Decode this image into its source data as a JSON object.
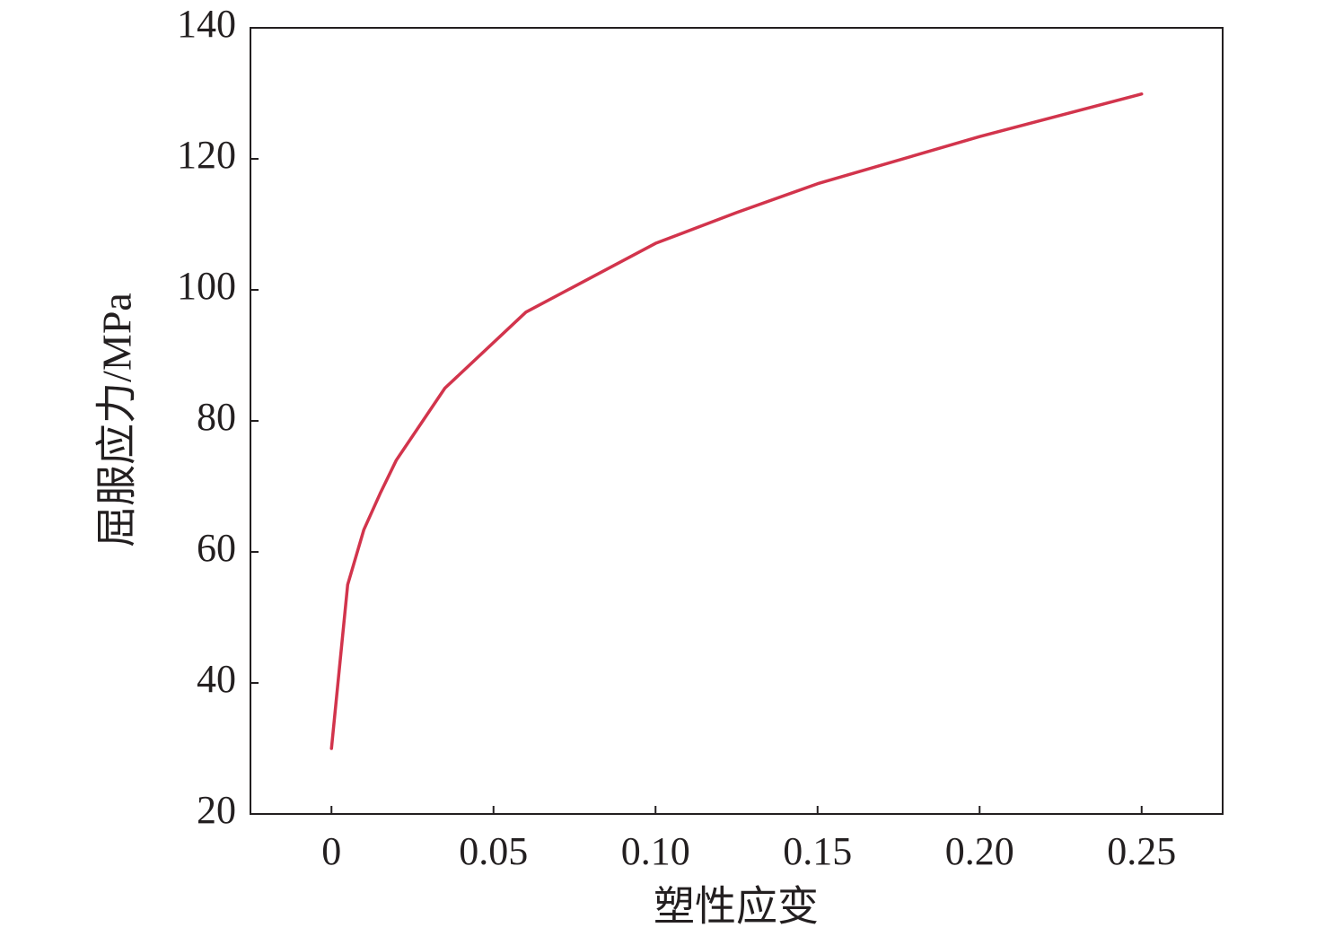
{
  "chart_data": {
    "type": "line",
    "xlabel": "塑性应变",
    "ylabel": "屈服应力/MPa",
    "x": [
      0,
      0.005,
      0.01,
      0.015,
      0.02,
      0.035,
      0.06,
      0.1,
      0.125,
      0.15,
      0.2,
      0.25
    ],
    "values": [
      30,
      55,
      63.4,
      68.9,
      74,
      85,
      96.6,
      107.1,
      111.8,
      116.2,
      123.4,
      129.9
    ],
    "color": "#d2344c",
    "xlim": [
      -0.025,
      0.275
    ],
    "xticks": [
      0,
      0.05,
      {
        "value": 0.1,
        "label": "0.10"
      },
      0.15,
      {
        "value": 0.2,
        "label": "0.20"
      },
      0.25
    ],
    "ylim": [
      20,
      140
    ],
    "yticks": [
      20,
      40,
      60,
      80,
      100,
      120,
      140
    ],
    "grid": false
  }
}
